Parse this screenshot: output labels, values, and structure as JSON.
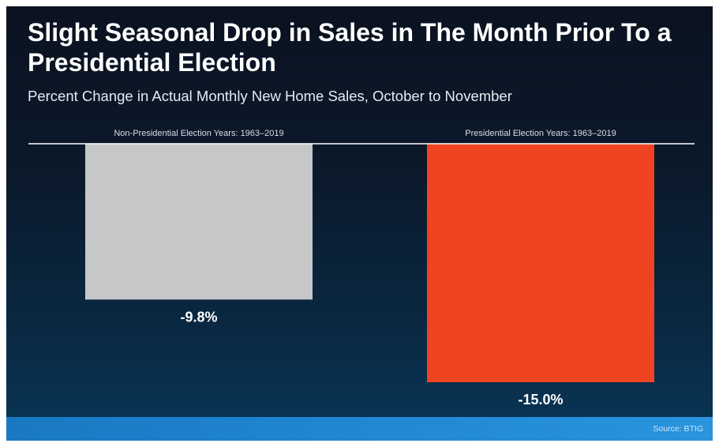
{
  "title": "Slight Seasonal Drop in Sales in The Month Prior To a Presidential Election",
  "subtitle": "Percent Change in Actual Monthly New Home Sales, October to November",
  "source": "Source: BTIG",
  "colors": {
    "background": "#0b1a2c",
    "non_election_bar": "#c6c7c9",
    "election_bar": "#ef4322",
    "baseline": "#ffffff",
    "footer": "#1f86d3"
  },
  "chart_data": {
    "type": "bar",
    "orientation": "vertical",
    "title": "Slight Seasonal Drop in Sales in The Month Prior To a Presidential Election",
    "subtitle": "Percent Change in Actual Monthly New Home Sales, October to November",
    "categories": [
      "Non-Presidential Election Years: 1963–2019",
      "Presidential Election Years: 1963–2019"
    ],
    "values": [
      -9.8,
      -15.0
    ],
    "value_labels": [
      "-9.8%",
      "-15.0%"
    ],
    "unit": "%",
    "category_label_position": "top",
    "ylim": [
      -15.0,
      0
    ],
    "grid": false,
    "legend": "none"
  }
}
